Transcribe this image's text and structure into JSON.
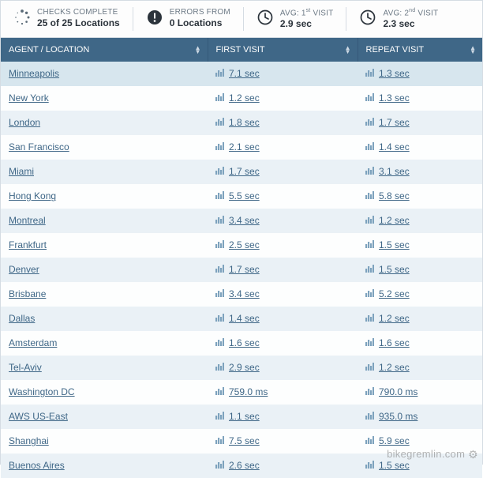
{
  "stats": [
    {
      "top": "CHECKS COMPLETE",
      "bottom": "25 of 25 Locations",
      "icon": "loading"
    },
    {
      "top": "ERRORS FROM",
      "bottom": "0 Locations",
      "icon": "error"
    },
    {
      "top_html": "AVG: 1<sup>st</sup> VISIT",
      "bottom": "2.9 sec",
      "icon": "clock"
    },
    {
      "top_html": "AVG: 2<sup>nd</sup> VISIT",
      "bottom": "2.3 sec",
      "icon": "clock"
    }
  ],
  "columns": {
    "location": "AGENT / LOCATION",
    "first": "FIRST VISIT",
    "repeat": "REPEAT VISIT"
  },
  "rows": [
    {
      "loc": "Minneapolis",
      "first": "7.1 sec",
      "repeat": "1.3 sec",
      "selected": true
    },
    {
      "loc": "New York",
      "first": "1.2 sec",
      "repeat": "1.3 sec"
    },
    {
      "loc": "London",
      "first": "1.8 sec",
      "repeat": "1.7 sec"
    },
    {
      "loc": "San Francisco",
      "first": "2.1 sec",
      "repeat": "1.4 sec"
    },
    {
      "loc": "Miami",
      "first": "1.7 sec",
      "repeat": "3.1 sec"
    },
    {
      "loc": "Hong Kong",
      "first": "5.5 sec",
      "repeat": "5.8 sec"
    },
    {
      "loc": "Montreal",
      "first": "3.4 sec",
      "repeat": "1.2 sec"
    },
    {
      "loc": "Frankfurt",
      "first": "2.5 sec",
      "repeat": "1.5 sec"
    },
    {
      "loc": "Denver",
      "first": "1.7 sec",
      "repeat": "1.5 sec"
    },
    {
      "loc": "Brisbane",
      "first": "3.4 sec",
      "repeat": "5.2 sec"
    },
    {
      "loc": "Dallas",
      "first": "1.4 sec",
      "repeat": "1.2 sec"
    },
    {
      "loc": "Amsterdam",
      "first": "1.6 sec",
      "repeat": "1.6 sec"
    },
    {
      "loc": "Tel-Aviv",
      "first": "2.9 sec",
      "repeat": "1.2 sec"
    },
    {
      "loc": "Washington DC",
      "first": "759.0 ms",
      "repeat": "790.0 ms"
    },
    {
      "loc": "AWS US-East",
      "first": "1.1 sec",
      "repeat": "935.0 ms"
    },
    {
      "loc": "Shanghai",
      "first": "7.5 sec",
      "repeat": "5.9 sec"
    },
    {
      "loc": "Buenos Aires",
      "first": "2.6 sec",
      "repeat": "1.5 sec"
    }
  ],
  "colors": {
    "header_bg": "#3f6787",
    "row_odd": "#eaf1f6",
    "row_even": "#fdfefe",
    "link": "#3f6787"
  },
  "watermark": "bikegremlin.com"
}
